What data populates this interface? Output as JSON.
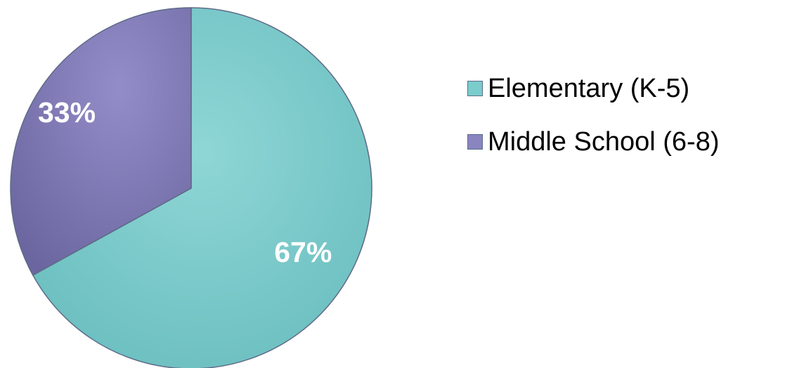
{
  "chart_data": {
    "type": "pie",
    "categories": [
      "Elementary (K-5)",
      "Middle School (6-8)"
    ],
    "values": [
      67,
      33
    ],
    "labels": [
      "67%",
      "33%"
    ],
    "colors": [
      "#7bcccc",
      "#8a84c0"
    ],
    "legend_position": "right",
    "title": ""
  }
}
